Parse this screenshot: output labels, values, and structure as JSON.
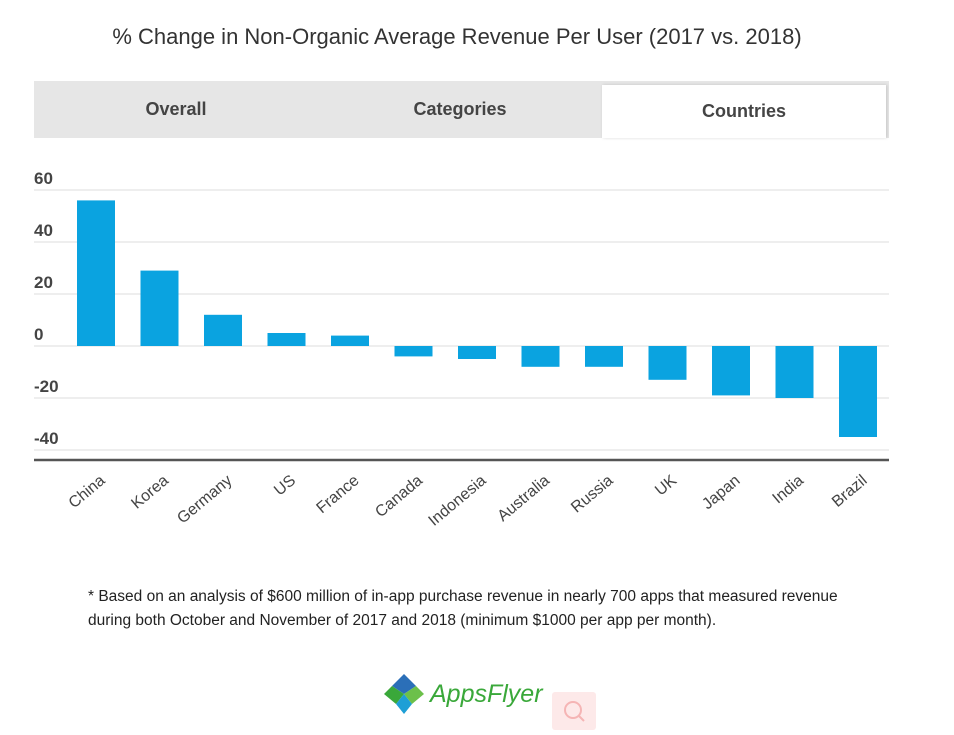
{
  "title": "% Change in Non-Organic Average Revenue Per User (2017 vs. 2018)",
  "tabs": [
    {
      "label": "Overall",
      "active": false
    },
    {
      "label": "Categories",
      "active": false
    },
    {
      "label": "Countries",
      "active": true
    }
  ],
  "chart_data": {
    "type": "bar",
    "categories": [
      "China",
      "Korea",
      "Germany",
      "US",
      "France",
      "Canada",
      "Indonesia",
      "Australia",
      "Russia",
      "UK",
      "Japan",
      "India",
      "Brazil"
    ],
    "values": [
      56,
      29,
      12,
      5,
      4,
      -4,
      -5,
      -8,
      -8,
      -13,
      -19,
      -20,
      -35
    ],
    "yticks": [
      60,
      40,
      20,
      0,
      -20,
      -40
    ],
    "ylim": [
      -44,
      64
    ],
    "grid": true,
    "bar_color": "#0aa3e0"
  },
  "footnote": "* Based on an analysis of $600 million of in-app purchase revenue in nearly 700 apps that measured revenue during both October and November of 2017 and 2018 (minimum $1000 per app per month).",
  "logo": {
    "text": "AppsFlyer",
    "color": "#3aa83a"
  },
  "search_icon": "search-icon"
}
